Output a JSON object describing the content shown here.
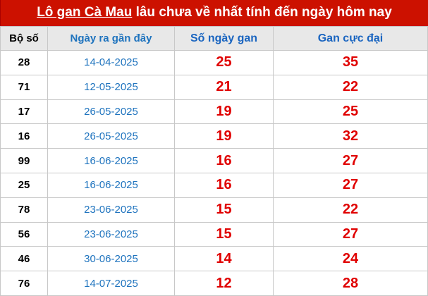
{
  "title": {
    "link": "Lô gan Cà Mau",
    "rest": " lâu chưa về nhất tính đến ngày hôm nay"
  },
  "headers": [
    "Bộ số",
    "Ngày ra gần đây",
    "Số ngày gan",
    "Gan cực đại"
  ],
  "rows": [
    [
      "28",
      "14-04-2025",
      "25",
      "35"
    ],
    [
      "71",
      "12-05-2025",
      "21",
      "22"
    ],
    [
      "17",
      "26-05-2025",
      "19",
      "25"
    ],
    [
      "16",
      "26-05-2025",
      "19",
      "32"
    ],
    [
      "99",
      "16-06-2025",
      "16",
      "27"
    ],
    [
      "25",
      "16-06-2025",
      "16",
      "27"
    ],
    [
      "78",
      "23-06-2025",
      "15",
      "22"
    ],
    [
      "56",
      "23-06-2025",
      "15",
      "27"
    ],
    [
      "46",
      "30-06-2025",
      "14",
      "24"
    ],
    [
      "76",
      "14-07-2025",
      "12",
      "28"
    ]
  ]
}
